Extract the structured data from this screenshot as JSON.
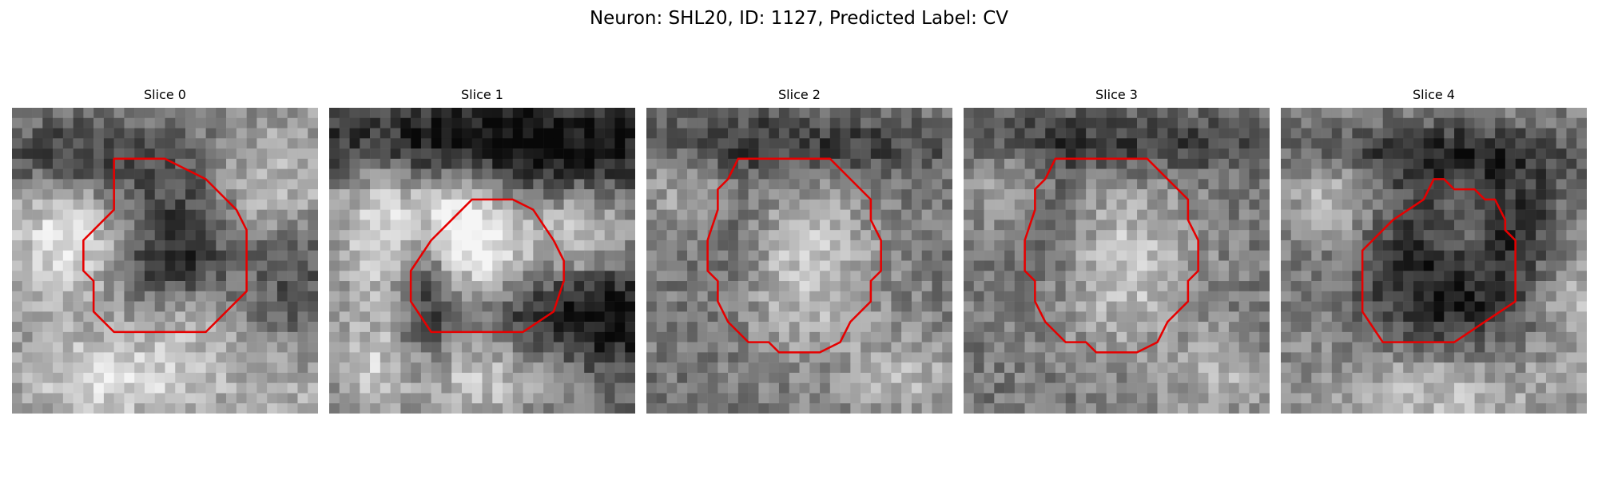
{
  "figure": {
    "title": "Neuron: SHL20, ID: 1127, Predicted Label: CV"
  },
  "colors": {
    "contour": "#e60000"
  },
  "panels": [
    {
      "title": "Slice 0",
      "seed": 11,
      "structure": "dark-center-blob",
      "contour_shape": "irregular-octagon"
    },
    {
      "title": "Slice 1",
      "seed": 23,
      "structure": "bright-lobes",
      "contour_shape": "irregular-octagon"
    },
    {
      "title": "Slice 2",
      "seed": 37,
      "structure": "bright-round-vesicle",
      "contour_shape": "irregular-circle"
    },
    {
      "title": "Slice 3",
      "seed": 53,
      "structure": "bright-round-vesicle",
      "contour_shape": "irregular-circle"
    },
    {
      "title": "Slice 4",
      "seed": 71,
      "structure": "dark-ring",
      "contour_shape": "irregular-octagon"
    }
  ]
}
